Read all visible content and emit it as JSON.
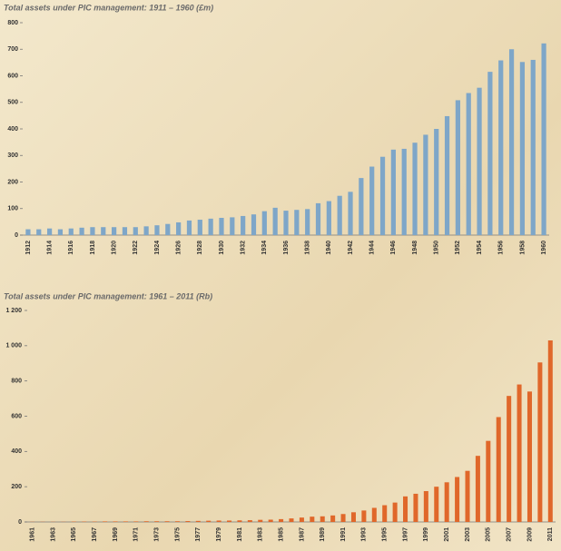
{
  "chart_data": [
    {
      "type": "bar",
      "title": "Total assets under PIC management: 1911 – 1960 (£m)",
      "categories": [
        "1912",
        null,
        "1914",
        null,
        "1916",
        null,
        "1918",
        null,
        "1920",
        null,
        "1922",
        null,
        "1924",
        null,
        "1926",
        null,
        "1928",
        null,
        "1930",
        null,
        "1932",
        null,
        "1934",
        null,
        "1936",
        null,
        "1938",
        null,
        "1940",
        null,
        "1942",
        null,
        "1944",
        null,
        "1946",
        null,
        "1948",
        null,
        "1950",
        null,
        "1952",
        null,
        "1954",
        null,
        "1956",
        null,
        "1958",
        null,
        "1960"
      ],
      "values": [
        22,
        22,
        25,
        22,
        25,
        28,
        30,
        30,
        30,
        30,
        30,
        33,
        37,
        42,
        48,
        55,
        58,
        62,
        65,
        67,
        72,
        78,
        90,
        103,
        92,
        95,
        98,
        120,
        128,
        148,
        163,
        215,
        258,
        295,
        322,
        325,
        348,
        378,
        400,
        448,
        508,
        535,
        555,
        615,
        658,
        700,
        652,
        660,
        722
      ],
      "color": "#7ea6c8",
      "ylim": [
        0,
        800
      ],
      "yticks": [
        0,
        100,
        200,
        300,
        400,
        500,
        600,
        700,
        800
      ]
    },
    {
      "type": "bar",
      "title": "Total assets under PIC management: 1961 – 2011 (Rb)",
      "categories": [
        "1961",
        null,
        "1963",
        null,
        "1965",
        null,
        "1967",
        null,
        "1969",
        null,
        "1971",
        null,
        "1973",
        null,
        "1975",
        null,
        "1977",
        null,
        "1979",
        null,
        "1981",
        null,
        "1983",
        null,
        "1985",
        null,
        "1987",
        null,
        "1989",
        null,
        "1991",
        null,
        "1993",
        null,
        "1995",
        null,
        "1997",
        null,
        "1999",
        null,
        "2001",
        null,
        "2003",
        null,
        "2005",
        null,
        "2007",
        null,
        "2009",
        null,
        "2011"
      ],
      "values": [
        1,
        1,
        1,
        1,
        2,
        2,
        2,
        3,
        3,
        3,
        3,
        4,
        4,
        4,
        4,
        5,
        6,
        7,
        8,
        8,
        9,
        10,
        12,
        13,
        16,
        20,
        25,
        30,
        32,
        37,
        45,
        55,
        65,
        80,
        95,
        110,
        145,
        160,
        175,
        200,
        225,
        255,
        290,
        375,
        460,
        595,
        715,
        780,
        740,
        905,
        1030
      ],
      "color": "#e0672a",
      "ylim": [
        0,
        1200
      ],
      "yticks": [
        0,
        200,
        400,
        600,
        800,
        {
          "value": 1000,
          "label": "1 000"
        },
        {
          "value": 1200,
          "label": "1 200"
        }
      ]
    }
  ]
}
